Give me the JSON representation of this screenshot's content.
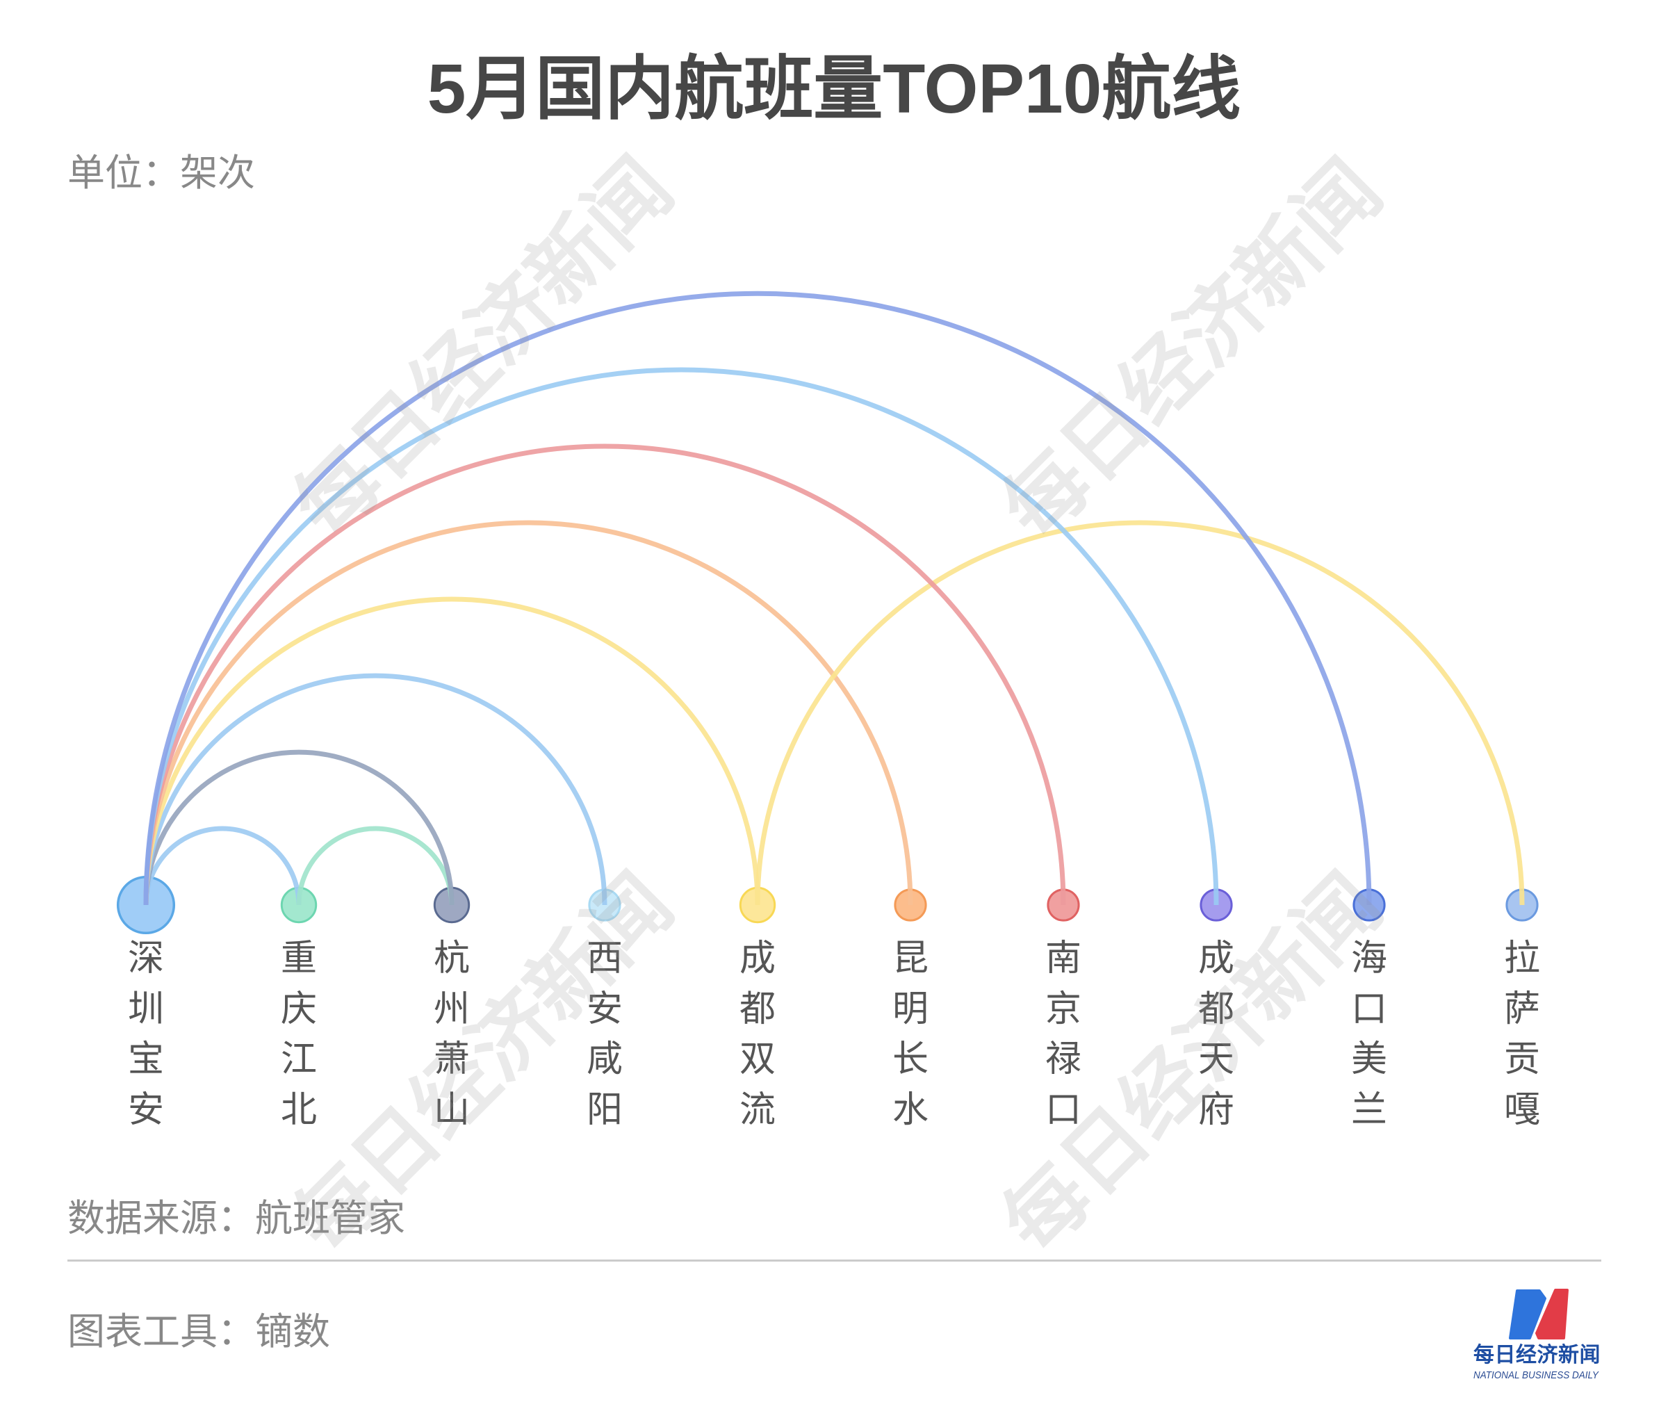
{
  "header": {
    "title": "5月国内航班量TOP10航线",
    "unit": "单位：架次"
  },
  "footer": {
    "source": "数据来源：航班管家",
    "tool": "图表工具：镝数"
  },
  "watermark": {
    "text": "每日经济新闻"
  },
  "logo": {
    "name_cn": "每日经济新闻",
    "name_en": "NATIONAL BUSINESS DAILY",
    "colors": {
      "blue": "#2e74dc",
      "red": "#e23c47"
    }
  },
  "chart_data": {
    "type": "arc",
    "title": "5月国内航班量TOP10航线",
    "unit": "架次",
    "source": "航班管家",
    "layout": "arc diagram, airports on a horizontal baseline, routes drawn as semicircular arcs above",
    "nodes": [
      {
        "id": "深圳宝安",
        "fill": "#a0cdf7",
        "stroke": "#5ba8e6"
      },
      {
        "id": "重庆江北",
        "fill": "#a3e8cf",
        "stroke": "#6dd6b0"
      },
      {
        "id": "杭州萧山",
        "fill": "#9ea8c2",
        "stroke": "#5a6a90"
      },
      {
        "id": "西安咸阳",
        "fill": "#c9e9f9",
        "stroke": "#a9daf3"
      },
      {
        "id": "成都双流",
        "fill": "#fde79a",
        "stroke": "#f8d855"
      },
      {
        "id": "昆明长水",
        "fill": "#fcbd8c",
        "stroke": "#f49a56"
      },
      {
        "id": "南京禄口",
        "fill": "#f0a0a0",
        "stroke": "#e06262"
      },
      {
        "id": "成都天府",
        "fill": "#a59cee",
        "stroke": "#6a5fd8"
      },
      {
        "id": "海口美兰",
        "fill": "#8faaee",
        "stroke": "#4a70d8"
      },
      {
        "id": "拉萨贡嘎",
        "fill": "#a8c5f0",
        "stroke": "#6b9ae0"
      }
    ],
    "links": [
      {
        "source": "深圳宝安",
        "target": "重庆江北",
        "color": "#9ccaf2"
      },
      {
        "source": "深圳宝安",
        "target": "杭州萧山",
        "color": "#95a3bd"
      },
      {
        "source": "深圳宝安",
        "target": "西安咸阳",
        "color": "#9ccaf2"
      },
      {
        "source": "深圳宝安",
        "target": "成都双流",
        "color": "#fbe38e"
      },
      {
        "source": "深圳宝安",
        "target": "昆明长水",
        "color": "#f8bf92"
      },
      {
        "source": "深圳宝安",
        "target": "南京禄口",
        "color": "#ec9a9c"
      },
      {
        "source": "深圳宝安",
        "target": "成都天府",
        "color": "#9acbf3"
      },
      {
        "source": "深圳宝安",
        "target": "海口美兰",
        "color": "#8aa2e8"
      },
      {
        "source": "重庆江北",
        "target": "杭州萧山",
        "color": "#9fe3cb"
      },
      {
        "source": "成都双流",
        "target": "拉萨贡嘎",
        "color": "#fbe38e"
      }
    ]
  }
}
